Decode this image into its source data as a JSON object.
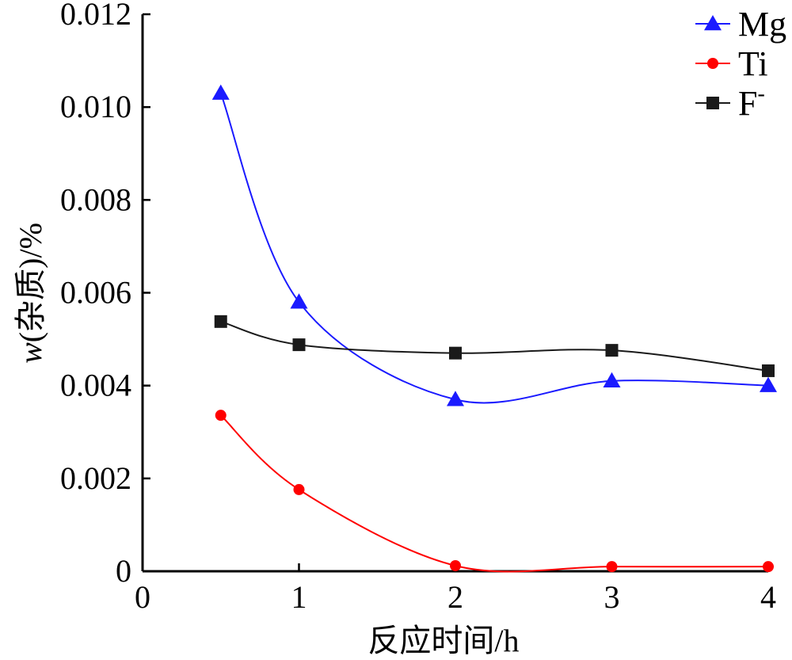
{
  "chart_data": {
    "type": "line",
    "title": "",
    "xlabel": "反应时间/h",
    "ylabel_main": "w",
    "ylabel_rest": "(杂质)/%",
    "xlim": [
      0,
      4
    ],
    "ylim": [
      0,
      0.012
    ],
    "x_ticks": [
      "0",
      "1",
      "2",
      "3",
      "4"
    ],
    "y_ticks": [
      "0",
      "0.002",
      "0.004",
      "0.006",
      "0.008",
      "0.010",
      "0.012"
    ],
    "grid": false,
    "legend_position": "top-right",
    "series": [
      {
        "name": "Mg",
        "color": "#1a1aff",
        "marker": "triangle",
        "x": [
          0.5,
          1,
          2,
          3,
          4
        ],
        "y": [
          0.0103,
          0.0058,
          0.0037,
          0.0041,
          0.004
        ]
      },
      {
        "name": "Ti",
        "color": "#ff0000",
        "marker": "circle",
        "x": [
          0.5,
          1,
          2,
          3,
          4
        ],
        "y": [
          0.00336,
          0.00176,
          0.00012,
          0.0001,
          0.0001
        ]
      },
      {
        "name": "F",
        "name_superscript": "-",
        "color": "#1a1a1a",
        "marker": "square",
        "x": [
          0.5,
          1,
          2,
          3,
          4
        ],
        "y": [
          0.00538,
          0.00488,
          0.0047,
          0.00476,
          0.00432
        ]
      }
    ]
  }
}
